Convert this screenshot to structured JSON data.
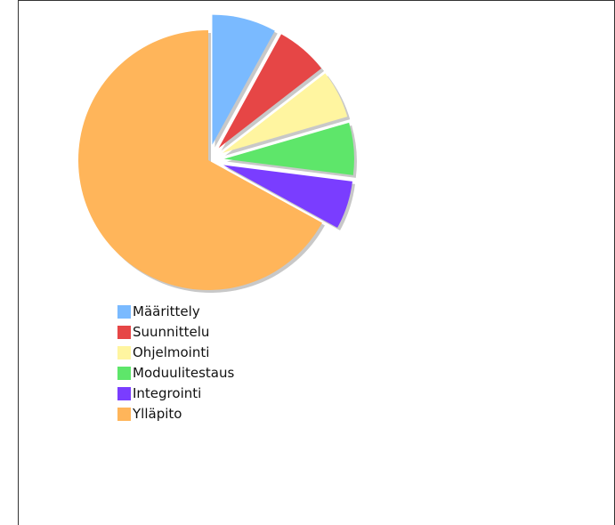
{
  "chart_data": {
    "type": "pie",
    "title": "",
    "legend_position": "bottom-left",
    "exploded": [
      "Määrittely",
      "Suunnittelu",
      "Ohjelmointi",
      "Moduulitestaus",
      "Integrointi"
    ],
    "slices": [
      {
        "label": "Määrittely",
        "value": 8,
        "color": "#7abaff"
      },
      {
        "label": "Suunnittelu",
        "value": 6.5,
        "color": "#e64646"
      },
      {
        "label": "Ohjelmointi",
        "value": 6,
        "color": "#fff5a0"
      },
      {
        "label": "Moduulitestaus",
        "value": 6.5,
        "color": "#5ee66a"
      },
      {
        "label": "Integrointi",
        "value": 6,
        "color": "#7a3dff"
      },
      {
        "label": "Ylläpito",
        "value": 67,
        "color": "#ffb55a"
      }
    ]
  }
}
